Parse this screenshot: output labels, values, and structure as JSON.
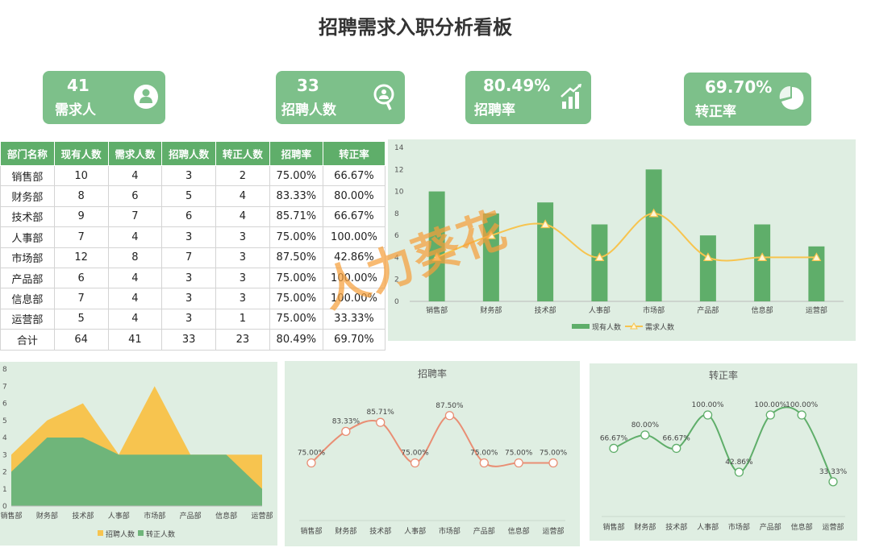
{
  "title": "招聘需求入职分析看板",
  "kpis": [
    {
      "value": "41",
      "label": "需求人",
      "icon": "person-icon"
    },
    {
      "value": "33",
      "label": "招聘人数",
      "icon": "magnifier-person-icon"
    },
    {
      "value": "80.49%",
      "label": "招聘率",
      "icon": "bar-chart-icon"
    },
    {
      "value": "69.70%",
      "label": "转正率",
      "icon": "pie-chart-icon"
    }
  ],
  "table": {
    "headers": [
      "部门名称",
      "现有人数",
      "需求人数",
      "招聘人数",
      "转正人数",
      "招聘率",
      "转正率"
    ],
    "rows": [
      [
        "销售部",
        "10",
        "4",
        "3",
        "2",
        "75.00%",
        "66.67%"
      ],
      [
        "财务部",
        "8",
        "6",
        "5",
        "4",
        "83.33%",
        "80.00%"
      ],
      [
        "技术部",
        "9",
        "7",
        "6",
        "4",
        "85.71%",
        "66.67%"
      ],
      [
        "人事部",
        "7",
        "4",
        "3",
        "3",
        "75.00%",
        "100.00%"
      ],
      [
        "市场部",
        "12",
        "8",
        "7",
        "3",
        "87.50%",
        "42.86%"
      ],
      [
        "产品部",
        "6",
        "4",
        "3",
        "3",
        "75.00%",
        "100.00%"
      ],
      [
        "信息部",
        "7",
        "4",
        "3",
        "3",
        "75.00%",
        "100.00%"
      ],
      [
        "运营部",
        "5",
        "4",
        "3",
        "1",
        "75.00%",
        "33.33%"
      ],
      [
        "合计",
        "64",
        "41",
        "33",
        "23",
        "80.49%",
        "69.70%"
      ]
    ]
  },
  "watermark": "人力葵花",
  "colors": {
    "green": "#5fae6a",
    "yellow": "#f7c44f",
    "salmon": "#e98e74",
    "panel": "#dfeee2"
  },
  "chart_data": [
    {
      "type": "bar",
      "categories": [
        "销售部",
        "财务部",
        "技术部",
        "人事部",
        "市场部",
        "产品部",
        "信息部",
        "运营部"
      ],
      "series": [
        {
          "name": "现有人数",
          "type": "bar",
          "values": [
            10,
            8,
            9,
            7,
            12,
            6,
            7,
            5
          ]
        },
        {
          "name": "需求人数",
          "type": "line",
          "values": [
            4,
            6,
            7,
            4,
            8,
            4,
            4,
            4
          ]
        }
      ],
      "ylim": [
        0,
        14
      ],
      "yticks": [
        0,
        2,
        4,
        6,
        8,
        10,
        12,
        14
      ],
      "legend": "bottom"
    },
    {
      "type": "area",
      "categories": [
        "销售部",
        "财务部",
        "技术部",
        "人事部",
        "市场部",
        "产品部",
        "信息部",
        "运营部"
      ],
      "series": [
        {
          "name": "招聘人数",
          "values": [
            3,
            5,
            6,
            3,
            7,
            3,
            3,
            3
          ]
        },
        {
          "name": "转正人数",
          "values": [
            2,
            4,
            4,
            3,
            3,
            3,
            3,
            1
          ]
        }
      ],
      "ylim": [
        0,
        8
      ],
      "yticks": [
        0,
        1,
        2,
        3,
        4,
        5,
        6,
        7,
        8
      ],
      "legend": "bottom"
    },
    {
      "type": "line",
      "title": "招聘率",
      "categories": [
        "销售部",
        "财务部",
        "技术部",
        "人事部",
        "市场部",
        "产品部",
        "信息部",
        "运营部"
      ],
      "values": [
        75.0,
        83.33,
        85.71,
        75.0,
        87.5,
        75.0,
        75.0,
        75.0
      ],
      "labels": [
        "75.00%",
        "83.33%",
        "85.71%",
        "75.00%",
        "87.50%",
        "75.00%",
        "75.00%",
        "75.00%"
      ]
    },
    {
      "type": "line",
      "title": "转正率",
      "categories": [
        "销售部",
        "财务部",
        "技术部",
        "人事部",
        "市场部",
        "产品部",
        "信息部",
        "运营部"
      ],
      "values": [
        66.67,
        80.0,
        66.67,
        100.0,
        42.86,
        100.0,
        100.0,
        33.33
      ],
      "labels": [
        "66.67%",
        "80.00%",
        "66.67%",
        "100.00%",
        "42.86%",
        "100.00%",
        "100.00%",
        "33.33%"
      ]
    }
  ]
}
